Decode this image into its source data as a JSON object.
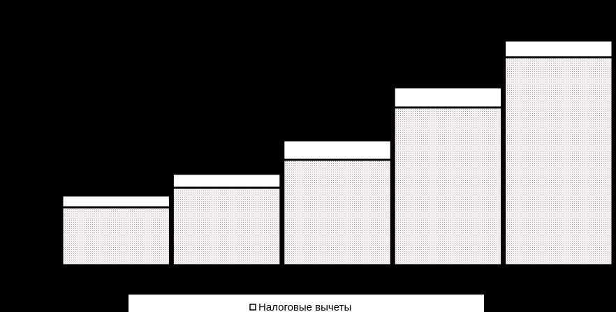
{
  "chart_data": {
    "type": "stacked-bar",
    "categories": [
      null,
      null,
      null,
      null,
      null
    ],
    "series": [
      {
        "name": "Налоговые вычеты",
        "color": "#a8949e",
        "values": [
          83,
          111,
          151,
          226,
          298
        ]
      },
      {
        "color": "#ffffff",
        "values": [
          17,
          20,
          28,
          29,
          24
        ]
      }
    ],
    "ylim": [
      0,
      330
    ]
  }
}
